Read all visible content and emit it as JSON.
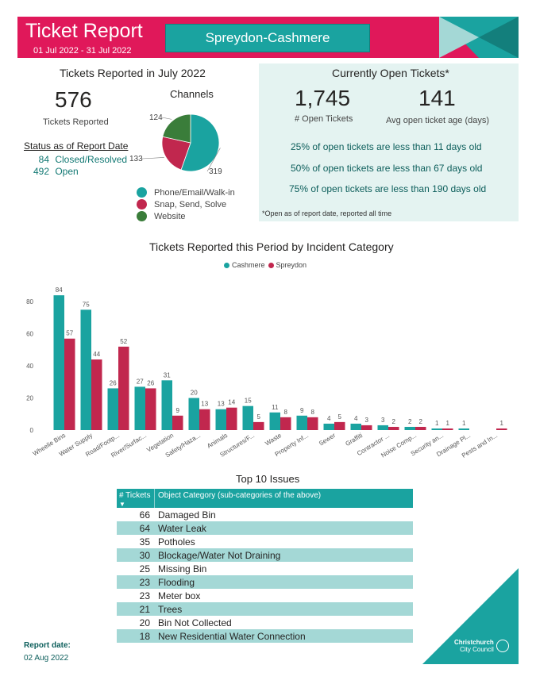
{
  "header": {
    "title": "Ticket Report",
    "date_range": "01 Jul 2022 - 31 Jul 2022",
    "ward": "Spreydon-Cashmere",
    "brand_color": "#e0185a",
    "accent_color": "#1aa3a0"
  },
  "reported": {
    "heading": "Tickets Reported in July 2022",
    "total": "576",
    "total_label": "Tickets Reported",
    "status_heading": "Status as of Report Date",
    "status": [
      {
        "count": "84",
        "label": "Closed/Resolved"
      },
      {
        "count": "492",
        "label": "Open"
      }
    ]
  },
  "channels": {
    "title": "Channels",
    "slices": [
      {
        "name": "Phone/Email/Walk-in",
        "value": 319,
        "label": "319",
        "color": "#1aa3a0"
      },
      {
        "name": "Snap, Send, Solve",
        "value": 133,
        "label": "133",
        "color": "#c1274e"
      },
      {
        "name": "Website",
        "value": 124,
        "label": "124",
        "color": "#3a7d3a"
      }
    ]
  },
  "open_tickets": {
    "heading": "Currently Open Tickets*",
    "open_count": "1,745",
    "open_label": "# Open Tickets",
    "avg_age": "141",
    "avg_age_label": "Avg open ticket age (days)",
    "lines": [
      "25% of open tickets are less than 11 days old",
      "50% of open tickets are less than 67 days old",
      "75% of open tickets are less than 190 days old"
    ],
    "footnote": "*Open as of report date, reported all time"
  },
  "chart_data": {
    "type": "bar",
    "title": "Tickets Reported this Period by Incident Category",
    "categories": [
      "Wheelie Bins",
      "Water Supply",
      "Road/Footp...",
      "River/Surfac...",
      "Vegetation",
      "Safety/Haza...",
      "Animals",
      "Structures/F...",
      "Waste",
      "Property Inf...",
      "Sewer",
      "Graffiti",
      "Contractor ...",
      "Noise Comp...",
      "Security an...",
      "Drainage Pl...",
      "Pests and In..."
    ],
    "series": [
      {
        "name": "Cashmere",
        "color": "#1aa3a0",
        "values": [
          84,
          75,
          26,
          27,
          31,
          20,
          13,
          15,
          11,
          9,
          4,
          4,
          3,
          2,
          1,
          1,
          null
        ]
      },
      {
        "name": "Spreydon",
        "color": "#c1274e",
        "values": [
          57,
          44,
          52,
          26,
          9,
          13,
          14,
          5,
          8,
          8,
          5,
          3,
          2,
          2,
          1,
          null,
          1
        ]
      }
    ],
    "y_ticks": [
      "0",
      "20",
      "40",
      "60",
      "80"
    ],
    "ylim": [
      0,
      90
    ],
    "legend_position": "top-center",
    "grid": false
  },
  "top10": {
    "title": "Top 10 Issues",
    "col_count": "# Tickets",
    "col_category": "Object Category (sub-categories of the above)",
    "sort_arrow": "▼",
    "rows": [
      {
        "n": "66",
        "c": "Damaged Bin"
      },
      {
        "n": "64",
        "c": "Water Leak"
      },
      {
        "n": "35",
        "c": "Potholes"
      },
      {
        "n": "30",
        "c": "Blockage/Water Not Draining"
      },
      {
        "n": "25",
        "c": "Missing Bin"
      },
      {
        "n": "23",
        "c": "Flooding"
      },
      {
        "n": "23",
        "c": "Meter box"
      },
      {
        "n": "21",
        "c": "Trees"
      },
      {
        "n": "20",
        "c": "Bin Not Collected"
      },
      {
        "n": "18",
        "c": "New Residential Water Connection"
      }
    ]
  },
  "footer": {
    "report_date_label": "Report date:",
    "report_date": "02 Aug 2022",
    "logo_line1": "Christchurch",
    "logo_line2": "City Council"
  }
}
